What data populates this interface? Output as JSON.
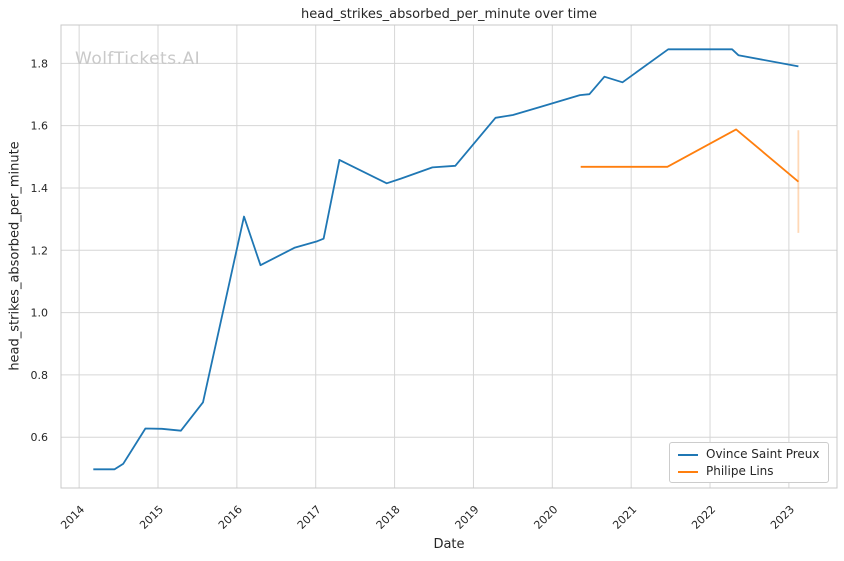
{
  "watermark": "WolfTickets.AI",
  "chart_data": {
    "type": "line",
    "title": "head_strikes_absorbed_per_minute over time",
    "xlabel": "Date",
    "ylabel": "head_strikes_absorbed_per_minute",
    "watermark": "WolfTickets.AI",
    "grid": true,
    "legend_position": "lower right",
    "xlim": [
      2013.77,
      2023.61
    ],
    "ylim": [
      0.437,
      1.923
    ],
    "x_ticks": [
      2014,
      2015,
      2016,
      2017,
      2018,
      2019,
      2020,
      2021,
      2022,
      2023
    ],
    "y_ticks": [
      0.6,
      0.8,
      1.0,
      1.2,
      1.4,
      1.6,
      1.8
    ],
    "style": {
      "grid_color": "#d6d6d6",
      "spine_color": "#c9c9c9",
      "tick_color": "#262626",
      "line_width": 1.8
    },
    "series": [
      {
        "name": "Ovince Saint Preux",
        "color": "#1f77b4",
        "points": [
          [
            2014.18,
            0.497
          ],
          [
            2014.45,
            0.497
          ],
          [
            2014.56,
            0.515
          ],
          [
            2014.84,
            0.628
          ],
          [
            2015.05,
            0.627
          ],
          [
            2015.29,
            0.621
          ],
          [
            2015.57,
            0.712
          ],
          [
            2016.09,
            1.308
          ],
          [
            2016.3,
            1.152
          ],
          [
            2016.73,
            1.208
          ],
          [
            2017.02,
            1.229
          ],
          [
            2017.1,
            1.237
          ],
          [
            2017.3,
            1.49
          ],
          [
            2017.9,
            1.415
          ],
          [
            2018.08,
            1.43
          ],
          [
            2018.48,
            1.466
          ],
          [
            2018.77,
            1.471
          ],
          [
            2019.28,
            1.625
          ],
          [
            2019.5,
            1.634
          ],
          [
            2019.85,
            1.66
          ],
          [
            2020.35,
            1.698
          ],
          [
            2020.47,
            1.701
          ],
          [
            2020.66,
            1.757
          ],
          [
            2020.89,
            1.739
          ],
          [
            2021.47,
            1.845
          ],
          [
            2022.28,
            1.845
          ],
          [
            2022.36,
            1.826
          ],
          [
            2023.12,
            1.79
          ]
        ]
      },
      {
        "name": "Philipe Lins",
        "color": "#ff7f0e",
        "points": [
          [
            2020.36,
            1.468
          ],
          [
            2021.46,
            1.468
          ],
          [
            2022.33,
            1.588
          ],
          [
            2023.12,
            1.42
          ]
        ],
        "error_bar": {
          "x": 2023.12,
          "low": 1.256,
          "high": 1.585,
          "color": "rgba(255,127,14,0.3)"
        }
      }
    ]
  }
}
